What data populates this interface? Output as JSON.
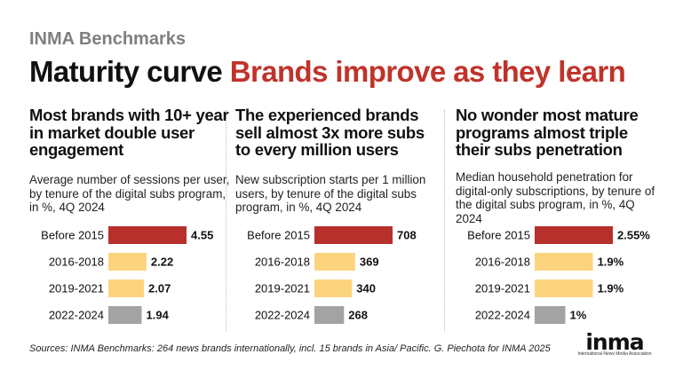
{
  "kicker": "INMA Benchmarks",
  "headline": {
    "black": "Maturity curve",
    "red": "Brands improve as they learn"
  },
  "colors": {
    "dark_red": "#b8302b",
    "light_yellow": "#fdd47e",
    "gray": "#a3a3a3",
    "accent_red": "#c0332a"
  },
  "panels": [
    {
      "title": "Most brands with 10+ year in market double user engagement",
      "description": "Average number of sessions per user, by tenure of the digital subs program, in %, 4Q 2024"
    },
    {
      "title": "The experienced brands sell almost 3x more subs to every million users",
      "description": "New subscription starts per 1 million users, by tenure of the digital subs program, in %, 4Q 2024"
    },
    {
      "title": "No wonder most mature programs almost triple their subs penetration",
      "description": "Median household penetration for digital-only subscriptions, by tenure of the digital subs program, in %, 4Q 2024"
    }
  ],
  "chart_data": [
    {
      "type": "bar",
      "orientation": "horizontal",
      "title": "Most brands with 10+ year in market double user engagement",
      "ylabel": "Average number of sessions per user",
      "categories": [
        "Before 2015",
        "2016-2018",
        "2019-2021",
        "2022-2024"
      ],
      "values": [
        4.55,
        2.22,
        2.07,
        1.94
      ],
      "value_labels": [
        "4.55",
        "2.22",
        "2.07",
        "1.94"
      ],
      "max": 4.55
    },
    {
      "type": "bar",
      "orientation": "horizontal",
      "title": "The experienced brands sell almost 3x more subs to every million users",
      "ylabel": "New subscription starts per 1 million users",
      "categories": [
        "Before 2015",
        "2016-2018",
        "2019-2021",
        "2022-2024"
      ],
      "values": [
        708,
        369,
        340,
        268
      ],
      "value_labels": [
        "708",
        "369",
        "340",
        "268"
      ],
      "max": 708
    },
    {
      "type": "bar",
      "orientation": "horizontal",
      "title": "No wonder most mature programs almost triple their subs penetration",
      "ylabel": "Median household penetration for digital-only subscriptions",
      "categories": [
        "Before 2015",
        "2016-2018",
        "2019-2021",
        "2022-2024"
      ],
      "values": [
        2.55,
        1.9,
        1.9,
        1.0
      ],
      "value_labels": [
        "2.55%",
        "1.9%",
        "1.9%",
        "1%"
      ],
      "max": 2.55
    }
  ],
  "footer": "Sources: INMA Benchmarks: 264 news brands internationally, incl. 15 brands in Asia/ Pacific. G. Piechota for INMA 2025",
  "logo": {
    "mark": "inma",
    "sub": "International News Media Association"
  }
}
